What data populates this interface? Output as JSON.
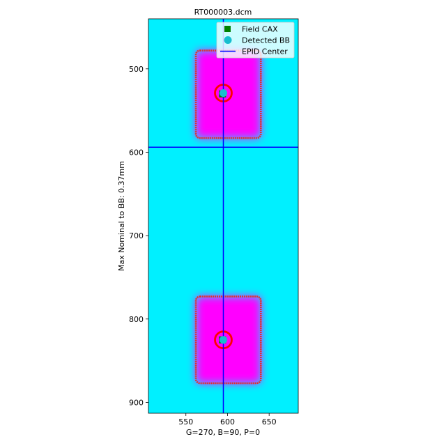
{
  "chart_data": {
    "type": "image",
    "title": "RT000003.dcm",
    "xlabel": "G=270, B=90, P=0",
    "ylabel": "Max Nominal to BB: 0.37mm",
    "xlim": [
      505,
      685
    ],
    "ylim": [
      913,
      440
    ],
    "y_inverted": true,
    "x_ticks": [
      550,
      600,
      650
    ],
    "y_ticks": [
      500,
      600,
      700,
      800,
      900
    ],
    "colors": {
      "background": "#00f0ff",
      "field": "#ff00ff",
      "field_edge": "#e03030",
      "bb_circle": "#ff0000",
      "bb_marker": "#17becf",
      "cax_marker": "#008000",
      "epid_line": "#0000ff"
    },
    "fields": [
      {
        "x_min": 562,
        "x_max": 640,
        "y_min": 478,
        "y_max": 583
      },
      {
        "x_min": 562,
        "x_max": 640,
        "y_min": 773,
        "y_max": 877
      }
    ],
    "field_cax": [
      {
        "x": 594,
        "y": 530
      },
      {
        "x": 594,
        "y": 825
      }
    ],
    "detected_bb": [
      {
        "x": 595,
        "y": 529
      },
      {
        "x": 595,
        "y": 825
      }
    ],
    "epid_center": {
      "x": 595,
      "y": 594
    },
    "legend": {
      "location": "upper-right",
      "entries": [
        {
          "label": "Field CAX",
          "marker": "square",
          "color": "#008000"
        },
        {
          "label": "Detected BB",
          "marker": "circle",
          "color": "#17becf"
        },
        {
          "label": "EPID Center",
          "marker": "line",
          "color": "#0000ff"
        }
      ]
    }
  }
}
